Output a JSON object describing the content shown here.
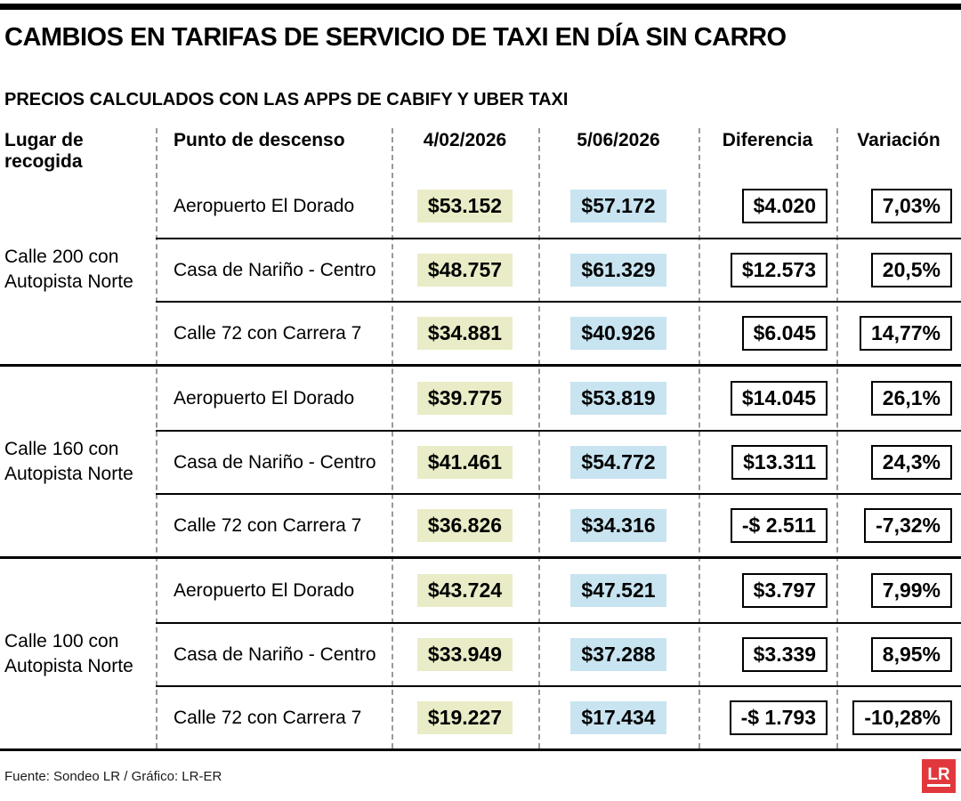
{
  "chart_data": {
    "type": "table",
    "title": "CAMBIOS EN TARIFAS DE SERVICIO DE TAXI EN DÍA SIN CARRO",
    "subtitle": "PRECIOS CALCULADOS CON LAS APPS DE CABIFY Y UBER TAXI",
    "columns": [
      "Lugar de recogida",
      "Punto de descenso",
      "4/02/2026",
      "5/06/2026",
      "Diferencia",
      "Variación"
    ],
    "groups": [
      {
        "pickup": "Calle 200 con Autopista Norte",
        "rows": [
          {
            "dropoff": "Aeropuerto El Dorado",
            "price_feb": "$53.152",
            "price_jun": "$57.172",
            "diff": "$4.020",
            "variation": "7,03%"
          },
          {
            "dropoff": "Casa de Nariño - Centro",
            "price_feb": "$48.757",
            "price_jun": "$61.329",
            "diff": "$12.573",
            "variation": "20,5%"
          },
          {
            "dropoff": "Calle 72 con Carrera 7",
            "price_feb": "$34.881",
            "price_jun": "$40.926",
            "diff": "$6.045",
            "variation": "14,77%"
          }
        ]
      },
      {
        "pickup": "Calle 160 con Autopista Norte",
        "rows": [
          {
            "dropoff": "Aeropuerto El Dorado",
            "price_feb": "$39.775",
            "price_jun": "$53.819",
            "diff": "$14.045",
            "variation": "26,1%"
          },
          {
            "dropoff": "Casa de Nariño - Centro",
            "price_feb": "$41.461",
            "price_jun": "$54.772",
            "diff": "$13.311",
            "variation": "24,3%"
          },
          {
            "dropoff": "Calle 72 con Carrera 7",
            "price_feb": "$36.826",
            "price_jun": "$34.316",
            "diff": "-$ 2.511",
            "variation": "-7,32%"
          }
        ]
      },
      {
        "pickup": "Calle 100 con Autopista Norte",
        "rows": [
          {
            "dropoff": "Aeropuerto El Dorado",
            "price_feb": "$43.724",
            "price_jun": "$47.521",
            "diff": "$3.797",
            "variation": "7,99%"
          },
          {
            "dropoff": "Casa de Nariño - Centro",
            "price_feb": "$33.949",
            "price_jun": "$37.288",
            "diff": "$3.339",
            "variation": "8,95%"
          },
          {
            "dropoff": "Calle 72 con Carrera 7",
            "price_feb": "$19.227",
            "price_jun": "$17.434",
            "diff": "-$ 1.793",
            "variation": "-10,28%"
          }
        ]
      }
    ]
  },
  "footer": {
    "source": "Fuente: Sondeo LR / Gráfico: LR-ER",
    "logo_text": "LR"
  },
  "colors": {
    "highlight_feb": "#e9ecc6",
    "highlight_jun": "#c8e4f1",
    "logo_background": "#e0383c",
    "rule_black": "#000000",
    "divider_gray": "#9a9a9a"
  }
}
